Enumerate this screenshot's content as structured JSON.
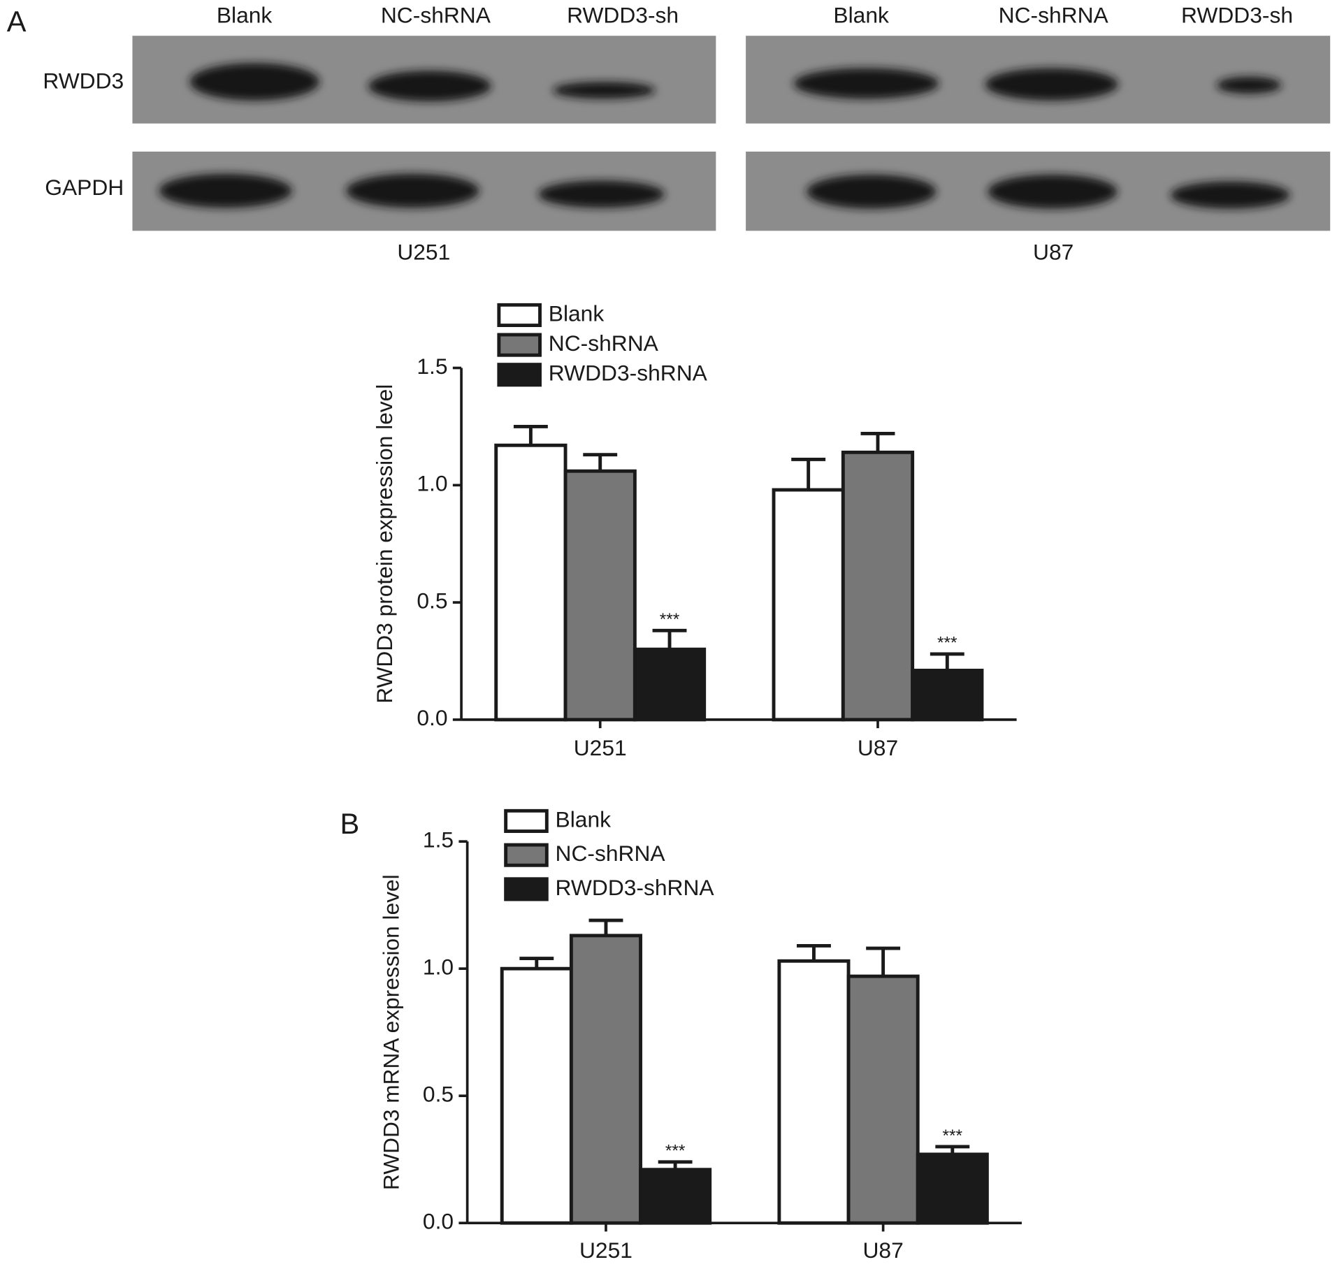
{
  "blot": {
    "panel_label": "A",
    "rows": [
      "RWDD3",
      "GAPDH"
    ],
    "groups": [
      {
        "cell_line": "U251",
        "lanes": [
          "Blank",
          "NC-shRNA",
          "RWDD3-sh"
        ]
      },
      {
        "cell_line": "U87",
        "lanes": [
          "Blank",
          "NC-shRNA",
          "RWDD3-sh"
        ]
      }
    ]
  },
  "chart_data": [
    {
      "type": "bar",
      "y_label": "RWDD3 protein expression level",
      "categories": [
        "U251",
        "U87"
      ],
      "series": [
        {
          "name": "Blank",
          "color": "#ffffff",
          "values": [
            1.17,
            0.98
          ],
          "errors": [
            0.08,
            0.13
          ]
        },
        {
          "name": "NC-shRNA",
          "color": "#777777",
          "values": [
            1.06,
            1.14
          ],
          "errors": [
            0.07,
            0.08
          ]
        },
        {
          "name": "RWDD3-shRNA",
          "color": "#1a1a1a",
          "values": [
            0.3,
            0.21
          ],
          "errors": [
            0.08,
            0.07
          ],
          "annotations": [
            "***",
            "***"
          ]
        }
      ],
      "ylim": [
        0,
        1.5
      ],
      "yticks": [
        {
          "value": 0,
          "label": "0.0"
        },
        0.5,
        {
          "value": 1,
          "label": "1.0"
        },
        1.5
      ],
      "legend": "top-left"
    },
    {
      "type": "bar",
      "panel_label": "B",
      "y_label": "RWDD3 mRNA expression level",
      "categories": [
        "U251",
        "U87"
      ],
      "series": [
        {
          "name": "Blank",
          "color": "#ffffff",
          "values": [
            1.0,
            1.03
          ],
          "errors": [
            0.04,
            0.06
          ]
        },
        {
          "name": "NC-shRNA",
          "color": "#777777",
          "values": [
            1.13,
            0.97
          ],
          "errors": [
            0.06,
            0.11
          ]
        },
        {
          "name": "RWDD3-shRNA",
          "color": "#1a1a1a",
          "values": [
            0.21,
            0.27
          ],
          "errors": [
            0.03,
            0.03
          ],
          "annotations": [
            "***",
            "***"
          ]
        }
      ],
      "ylim": [
        0,
        1.5
      ],
      "yticks": [
        {
          "value": 0,
          "label": "0.0"
        },
        0.5,
        {
          "value": 1,
          "label": "1.0"
        },
        1.5
      ],
      "legend": "top-left"
    }
  ]
}
